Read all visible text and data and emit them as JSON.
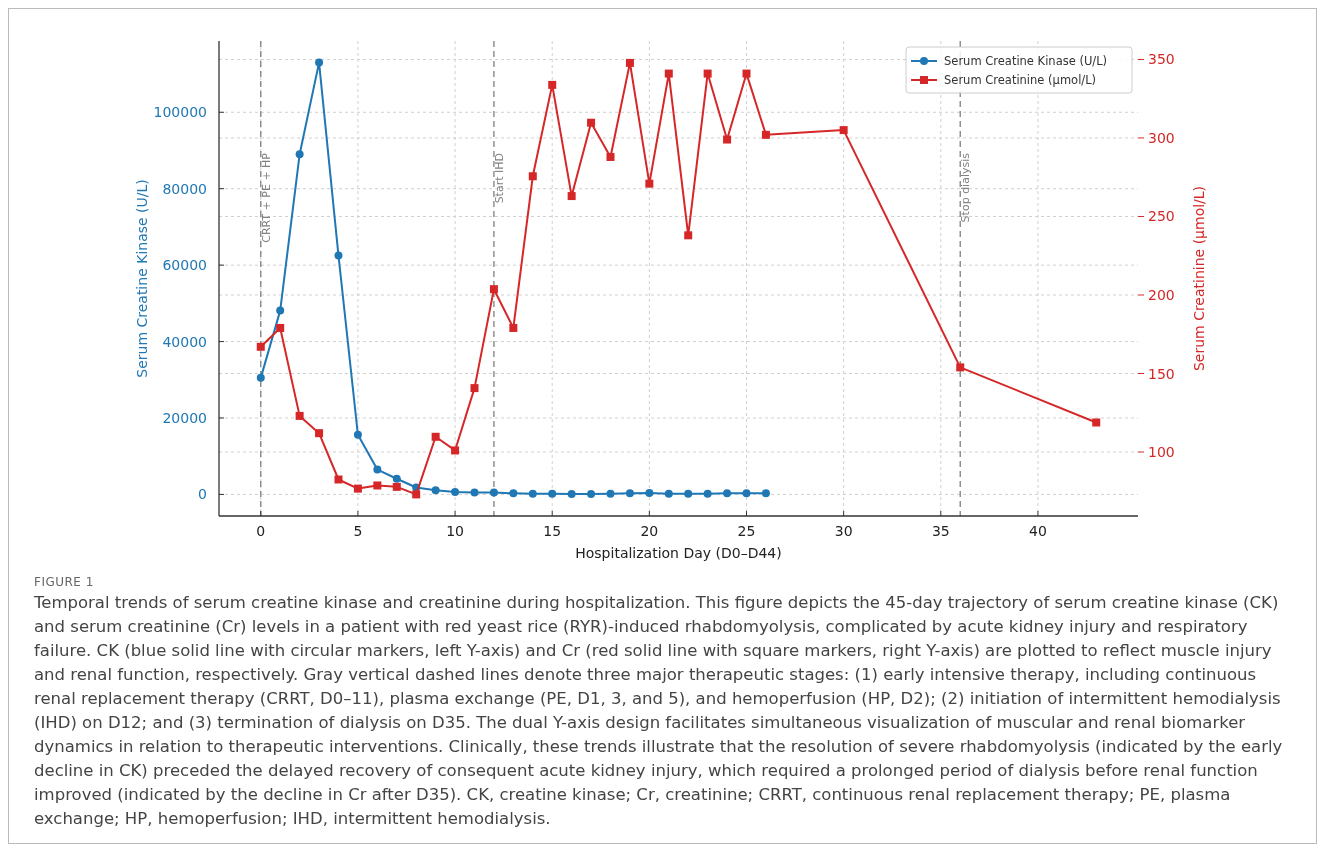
{
  "chart_data": {
    "type": "line",
    "xlabel": "Hospitalization Day (D0–D44)",
    "ylabel": "Serum Creatine Kinase (U/L)",
    "y2label": "Serum Creatinine (µmol/L)",
    "xlim": [
      -2.15,
      45.15
    ],
    "xticks": [
      0,
      5,
      10,
      15,
      20,
      25,
      30,
      35,
      40
    ],
    "ylim": [
      -5650,
      118650
    ],
    "yticks": [
      0,
      20000,
      40000,
      60000,
      80000,
      100000
    ],
    "y2lim": [
      59.25,
      361.75
    ],
    "y2ticks": [
      100,
      150,
      200,
      250,
      300,
      350
    ],
    "grid": true,
    "legend": "top right",
    "line_style": "solid",
    "series": [
      {
        "name": "Serum Creatine Kinase (U/L)",
        "color": "#1f77b4",
        "marker": "circle",
        "x": [
          0,
          1,
          2,
          3,
          4,
          5,
          6,
          7,
          8,
          9,
          10,
          11,
          12,
          13,
          14,
          15,
          16,
          17,
          18,
          19,
          20,
          21,
          22,
          23,
          24,
          25,
          26
        ],
        "values": [
          30500,
          48100,
          89000,
          113000,
          62500,
          15600,
          6500,
          4100,
          1800,
          1100,
          600,
          500,
          500,
          300,
          200,
          200,
          100,
          100,
          200,
          300,
          400,
          200,
          200,
          200,
          300,
          300,
          300
        ]
      },
      {
        "name": "Serum Creatinine (µmol/L)",
        "color": "#d62728",
        "marker": "square",
        "axis": "y2",
        "x": [
          0,
          1,
          2,
          3,
          4,
          5,
          6,
          7,
          8,
          9,
          10,
          11,
          12,
          13,
          14,
          15,
          16,
          17,
          18,
          19,
          20,
          21,
          22,
          23,
          24,
          25,
          26,
          30,
          36,
          43
        ],
        "values": [
          167,
          179,
          123,
          112,
          82.5,
          76.7,
          78.7,
          77.8,
          73,
          109.7,
          101,
          140.7,
          203.7,
          179,
          275.6,
          333.8,
          263,
          309.7,
          287.9,
          347.8,
          270.9,
          341,
          238,
          341,
          299,
          341,
          302,
          305,
          153.9,
          118.8
        ]
      }
    ],
    "ref_lines": [
      {
        "axis": "x",
        "value": 0,
        "label": "CRRT + PE + HP",
        "color": "#808080",
        "line_style": "dashed"
      },
      {
        "axis": "x",
        "value": 12,
        "label": "Start IHD",
        "color": "#808080",
        "line_style": "dashed"
      },
      {
        "axis": "x",
        "value": 36,
        "label": "Stop dialysis",
        "color": "#808080",
        "line_style": "dashed"
      }
    ],
    "annotations": [
      "FIGURE 1",
      "Temporal trends of serum creatine kinase and creatinine during hospitalization. This figure depicts the 45-day trajectory of serum creatine kinase (CK) and serum creatinine (Cr) levels in a patient with red yeast rice (RYR)-induced rhabdomyolysis, complicated by acute kidney injury and respiratory failure. CK (blue solid line with circular markers, left Y-axis) and Cr (red solid line with square markers, right Y-axis) are plotted to reflect muscle injury and renal function, respectively. Gray vertical dashed lines denote three major therapeutic stages: (1) early intensive therapy, including continuous renal replacement therapy (CRRT, D0–11), plasma exchange (PE, D1, 3, and 5), and hemoperfusion (HP, D2); (2) initiation of intermittent hemodialysis (IHD) on D12; and (3) termination of dialysis on D35. The dual Y-axis design facilitates simultaneous visualization of muscular and renal biomarker dynamics in relation to therapeutic interventions. Clinically, these trends illustrate that the resolution of severe rhabdomyolysis (indicated by the early decline in CK) preceded the delayed recovery of consequent acute kidney injury, which required a prolonged period of dialysis before renal function improved (indicated by the decline in Cr after D35). CK, creatine kinase; Cr, creatinine; CRRT, continuous renal replacement therapy; PE, plasma exchange; HP, hemoperfusion; IHD, intermittent hemodialysis."
    ]
  }
}
